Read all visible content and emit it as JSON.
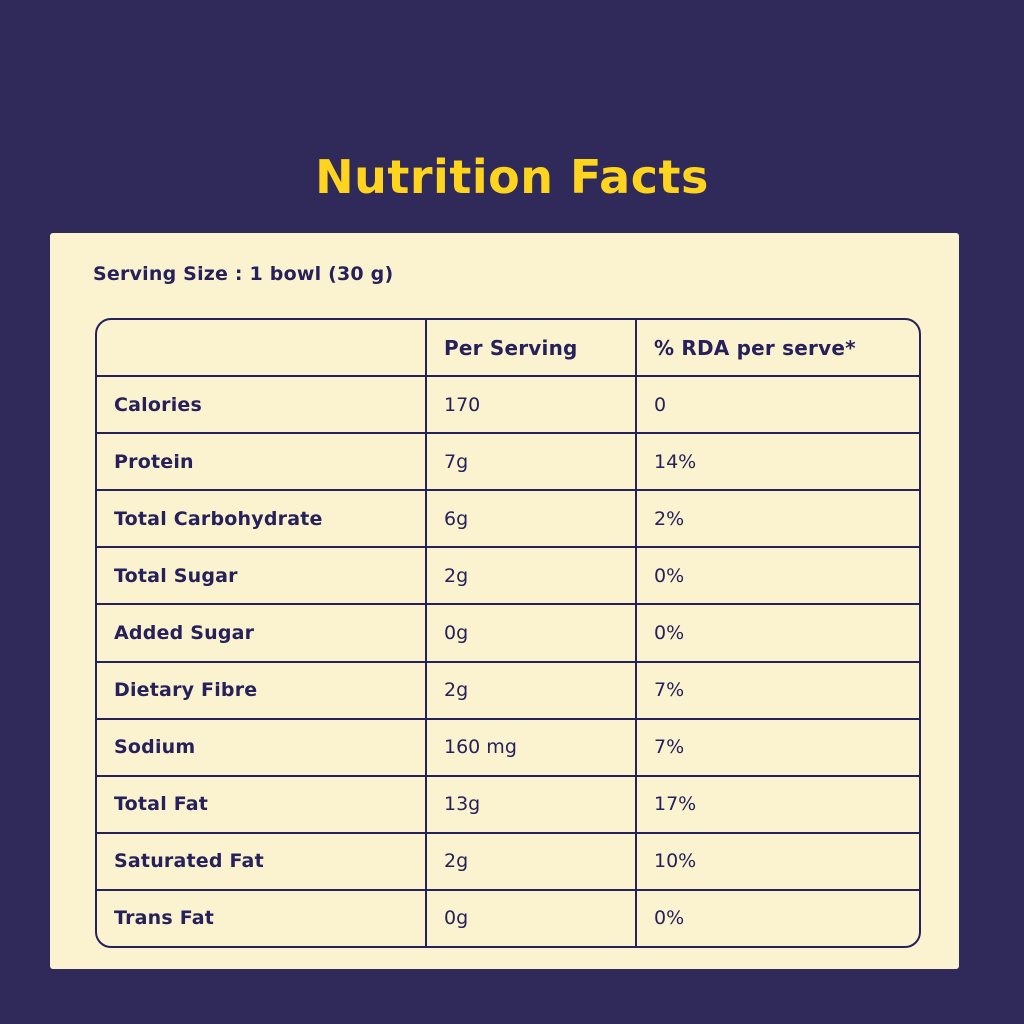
{
  "colors": {
    "background": "#2F2A5A",
    "card": "#FBF3D0",
    "ink": "#26215A",
    "accent_yellow": "#FFD41E"
  },
  "title": "Nutrition Facts",
  "serving_size_label": "Serving Size : 1 bowl (30 g)",
  "table": {
    "headers": [
      "",
      "Per Serving",
      "% RDA per serve*"
    ],
    "rows": [
      {
        "label": "Calories",
        "per_serving": "170",
        "rda": "0"
      },
      {
        "label": "Protein",
        "per_serving": "7g",
        "rda": "14%"
      },
      {
        "label": "Total Carbohydrate",
        "per_serving": "6g",
        "rda": "2%"
      },
      {
        "label": "Total Sugar",
        "per_serving": "2g",
        "rda": "0%"
      },
      {
        "label": "Added Sugar",
        "per_serving": "0g",
        "rda": "0%"
      },
      {
        "label": "Dietary Fibre",
        "per_serving": "2g",
        "rda": "7%"
      },
      {
        "label": "Sodium",
        "per_serving": "160 mg",
        "rda": "7%"
      },
      {
        "label": "Total Fat",
        "per_serving": "13g",
        "rda": "17%"
      },
      {
        "label": "Saturated Fat",
        "per_serving": "2g",
        "rda": "10%"
      },
      {
        "label": "Trans Fat",
        "per_serving": "0g",
        "rda": "0%"
      }
    ]
  }
}
